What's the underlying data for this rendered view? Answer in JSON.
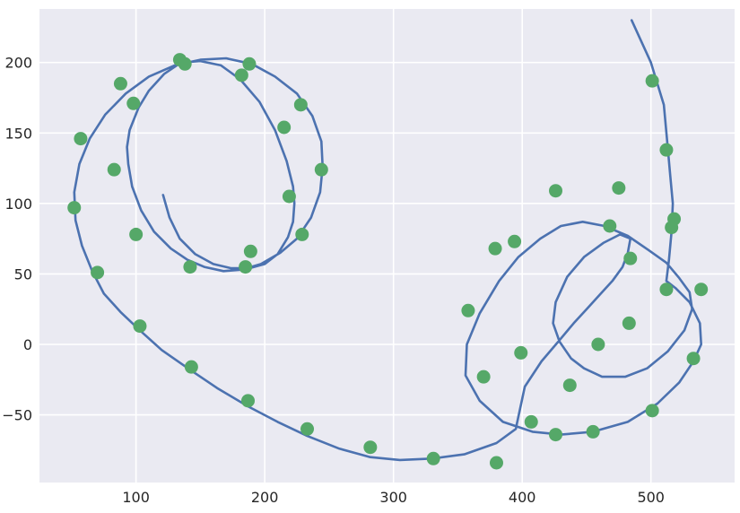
{
  "chart_data": {
    "type": "scatter",
    "title": "",
    "xlabel": "",
    "ylabel": "",
    "xlim": [
      25,
      565
    ],
    "ylim": [
      -98,
      238
    ],
    "x_ticks": [
      100,
      200,
      300,
      400,
      500
    ],
    "y_ticks": [
      -50,
      0,
      50,
      100,
      150,
      200
    ],
    "x_tick_labels": [
      "100",
      "200",
      "300",
      "400",
      "500"
    ],
    "y_tick_labels": [
      "−50",
      "0",
      "50",
      "100",
      "150",
      "200"
    ],
    "grid": true,
    "legend": "none",
    "colors": {
      "background": "#eaeaf2",
      "grid": "#ffffff",
      "line": "#4c72b0",
      "points": "#55a868"
    },
    "line": {
      "x": [
        485,
        500,
        510,
        513,
        515,
        517,
        516,
        514,
        512,
        519,
        530,
        538,
        539,
        533,
        522,
        505,
        482,
        455,
        430,
        408,
        385,
        367,
        356,
        357,
        367,
        382,
        397,
        414,
        430,
        447,
        464,
        482,
        498,
        512,
        522,
        530,
        532,
        526,
        513,
        497,
        480,
        462,
        448,
        438,
        429,
        424,
        426,
        435,
        448,
        463,
        476,
        484,
        482,
        478,
        470,
        460,
        450,
        440,
        428,
        415,
        402,
        395,
        380,
        355,
        330,
        305,
        282,
        258,
        233,
        210,
        187,
        163,
        142,
        120,
        103,
        88,
        75,
        66,
        58,
        53,
        52,
        56,
        64,
        76,
        92,
        110,
        130,
        150,
        170,
        190,
        208,
        225,
        237,
        244,
        245,
        243,
        236,
        225,
        212,
        197,
        182,
        168,
        153,
        140,
        127,
        114,
        104,
        97,
        94,
        93,
        95,
        102,
        110,
        122,
        135,
        150,
        166,
        181,
        196,
        208,
        217,
        222,
        223,
        222,
        218,
        210,
        200,
        188,
        174,
        160,
        146,
        134,
        126,
        121
      ],
      "y": [
        230,
        200,
        170,
        140,
        120,
        100,
        80,
        60,
        45,
        40,
        30,
        15,
        0,
        -12,
        -27,
        -42,
        -55,
        -62,
        -64,
        -62,
        -55,
        -40,
        -22,
        0,
        22,
        45,
        62,
        75,
        84,
        87,
        84,
        77,
        67,
        58,
        47,
        37,
        25,
        10,
        -5,
        -17,
        -23,
        -23,
        -17,
        -10,
        2,
        15,
        30,
        48,
        62,
        72,
        78,
        75,
        65,
        55,
        45,
        35,
        25,
        15,
        2,
        -12,
        -30,
        -60,
        -70,
        -78,
        -81,
        -82,
        -80,
        -74,
        -65,
        -55,
        -44,
        -31,
        -18,
        -4,
        10,
        23,
        36,
        52,
        70,
        88,
        108,
        128,
        146,
        163,
        178,
        190,
        198,
        202,
        203,
        199,
        190,
        178,
        162,
        144,
        126,
        108,
        90,
        75,
        65,
        57,
        53,
        52,
        55,
        60,
        68,
        80,
        95,
        112,
        128,
        140,
        152,
        168,
        180,
        192,
        200,
        201,
        198,
        188,
        172,
        152,
        130,
        112,
        100,
        87,
        76,
        64,
        57,
        54,
        54,
        57,
        64,
        75,
        90,
        106
      ]
    },
    "points": {
      "x": [
        501,
        512,
        518,
        516,
        512,
        539,
        533,
        501,
        455,
        426,
        407,
        370,
        358,
        379,
        394,
        426,
        475,
        468,
        484,
        483,
        459,
        437,
        399,
        380,
        331,
        282,
        233,
        187,
        143,
        103,
        70,
        52,
        57,
        88,
        134,
        188,
        228,
        244,
        229,
        185,
        142,
        100,
        83,
        98,
        138,
        182,
        215,
        219,
        189
      ],
      "y": [
        187,
        138,
        89,
        83,
        39,
        39,
        -10,
        -47,
        -62,
        -64,
        -55,
        -23,
        24,
        68,
        73,
        109,
        111,
        84,
        61,
        15,
        0,
        -29,
        -6,
        -84,
        -81,
        -73,
        -60,
        -40,
        -16,
        13,
        51,
        97,
        146,
        185,
        202,
        199,
        170,
        124,
        78,
        55,
        55,
        78,
        124,
        171,
        199,
        191,
        154,
        105,
        66
      ]
    }
  }
}
